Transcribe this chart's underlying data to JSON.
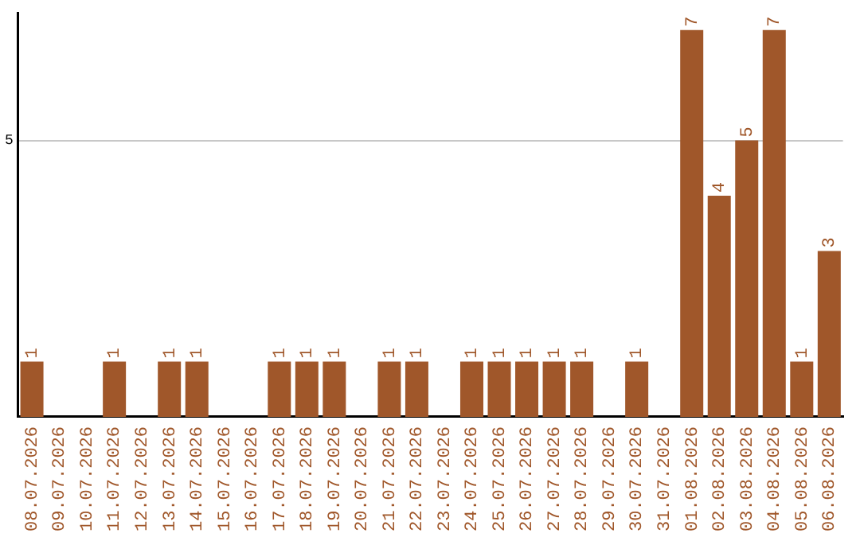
{
  "chart_data": {
    "type": "bar",
    "categories": [
      "08.07.2026",
      "09.07.2026",
      "10.07.2026",
      "11.07.2026",
      "12.07.2026",
      "13.07.2026",
      "14.07.2026",
      "15.07.2026",
      "16.07.2026",
      "17.07.2026",
      "18.07.2026",
      "19.07.2026",
      "20.07.2026",
      "21.07.2026",
      "22.07.2026",
      "23.07.2026",
      "24.07.2026",
      "25.07.2026",
      "26.07.2026",
      "27.07.2026",
      "28.07.2026",
      "29.07.2026",
      "30.07.2026",
      "31.07.2026",
      "01.08.2026",
      "02.08.2026",
      "03.08.2026",
      "04.08.2026",
      "05.08.2026",
      "06.08.2026"
    ],
    "values": [
      1,
      0,
      0,
      1,
      0,
      1,
      1,
      0,
      0,
      1,
      1,
      1,
      0,
      1,
      1,
      0,
      1,
      1,
      1,
      1,
      1,
      0,
      1,
      0,
      7,
      4,
      5,
      7,
      1,
      3
    ],
    "value_labels": [
      "1",
      null,
      null,
      "1",
      null,
      "1",
      "1",
      null,
      null,
      "1",
      "1",
      "1",
      null,
      "1",
      "1",
      null,
      "1",
      "1",
      "1",
      "1",
      "1",
      null,
      "1",
      null,
      "7",
      "4",
      "5",
      "7",
      "1",
      "3"
    ],
    "color": "#a0572a",
    "ylim": [
      0,
      7.3
    ],
    "yticks": [
      5
    ],
    "grid": "y",
    "legend": false
  }
}
